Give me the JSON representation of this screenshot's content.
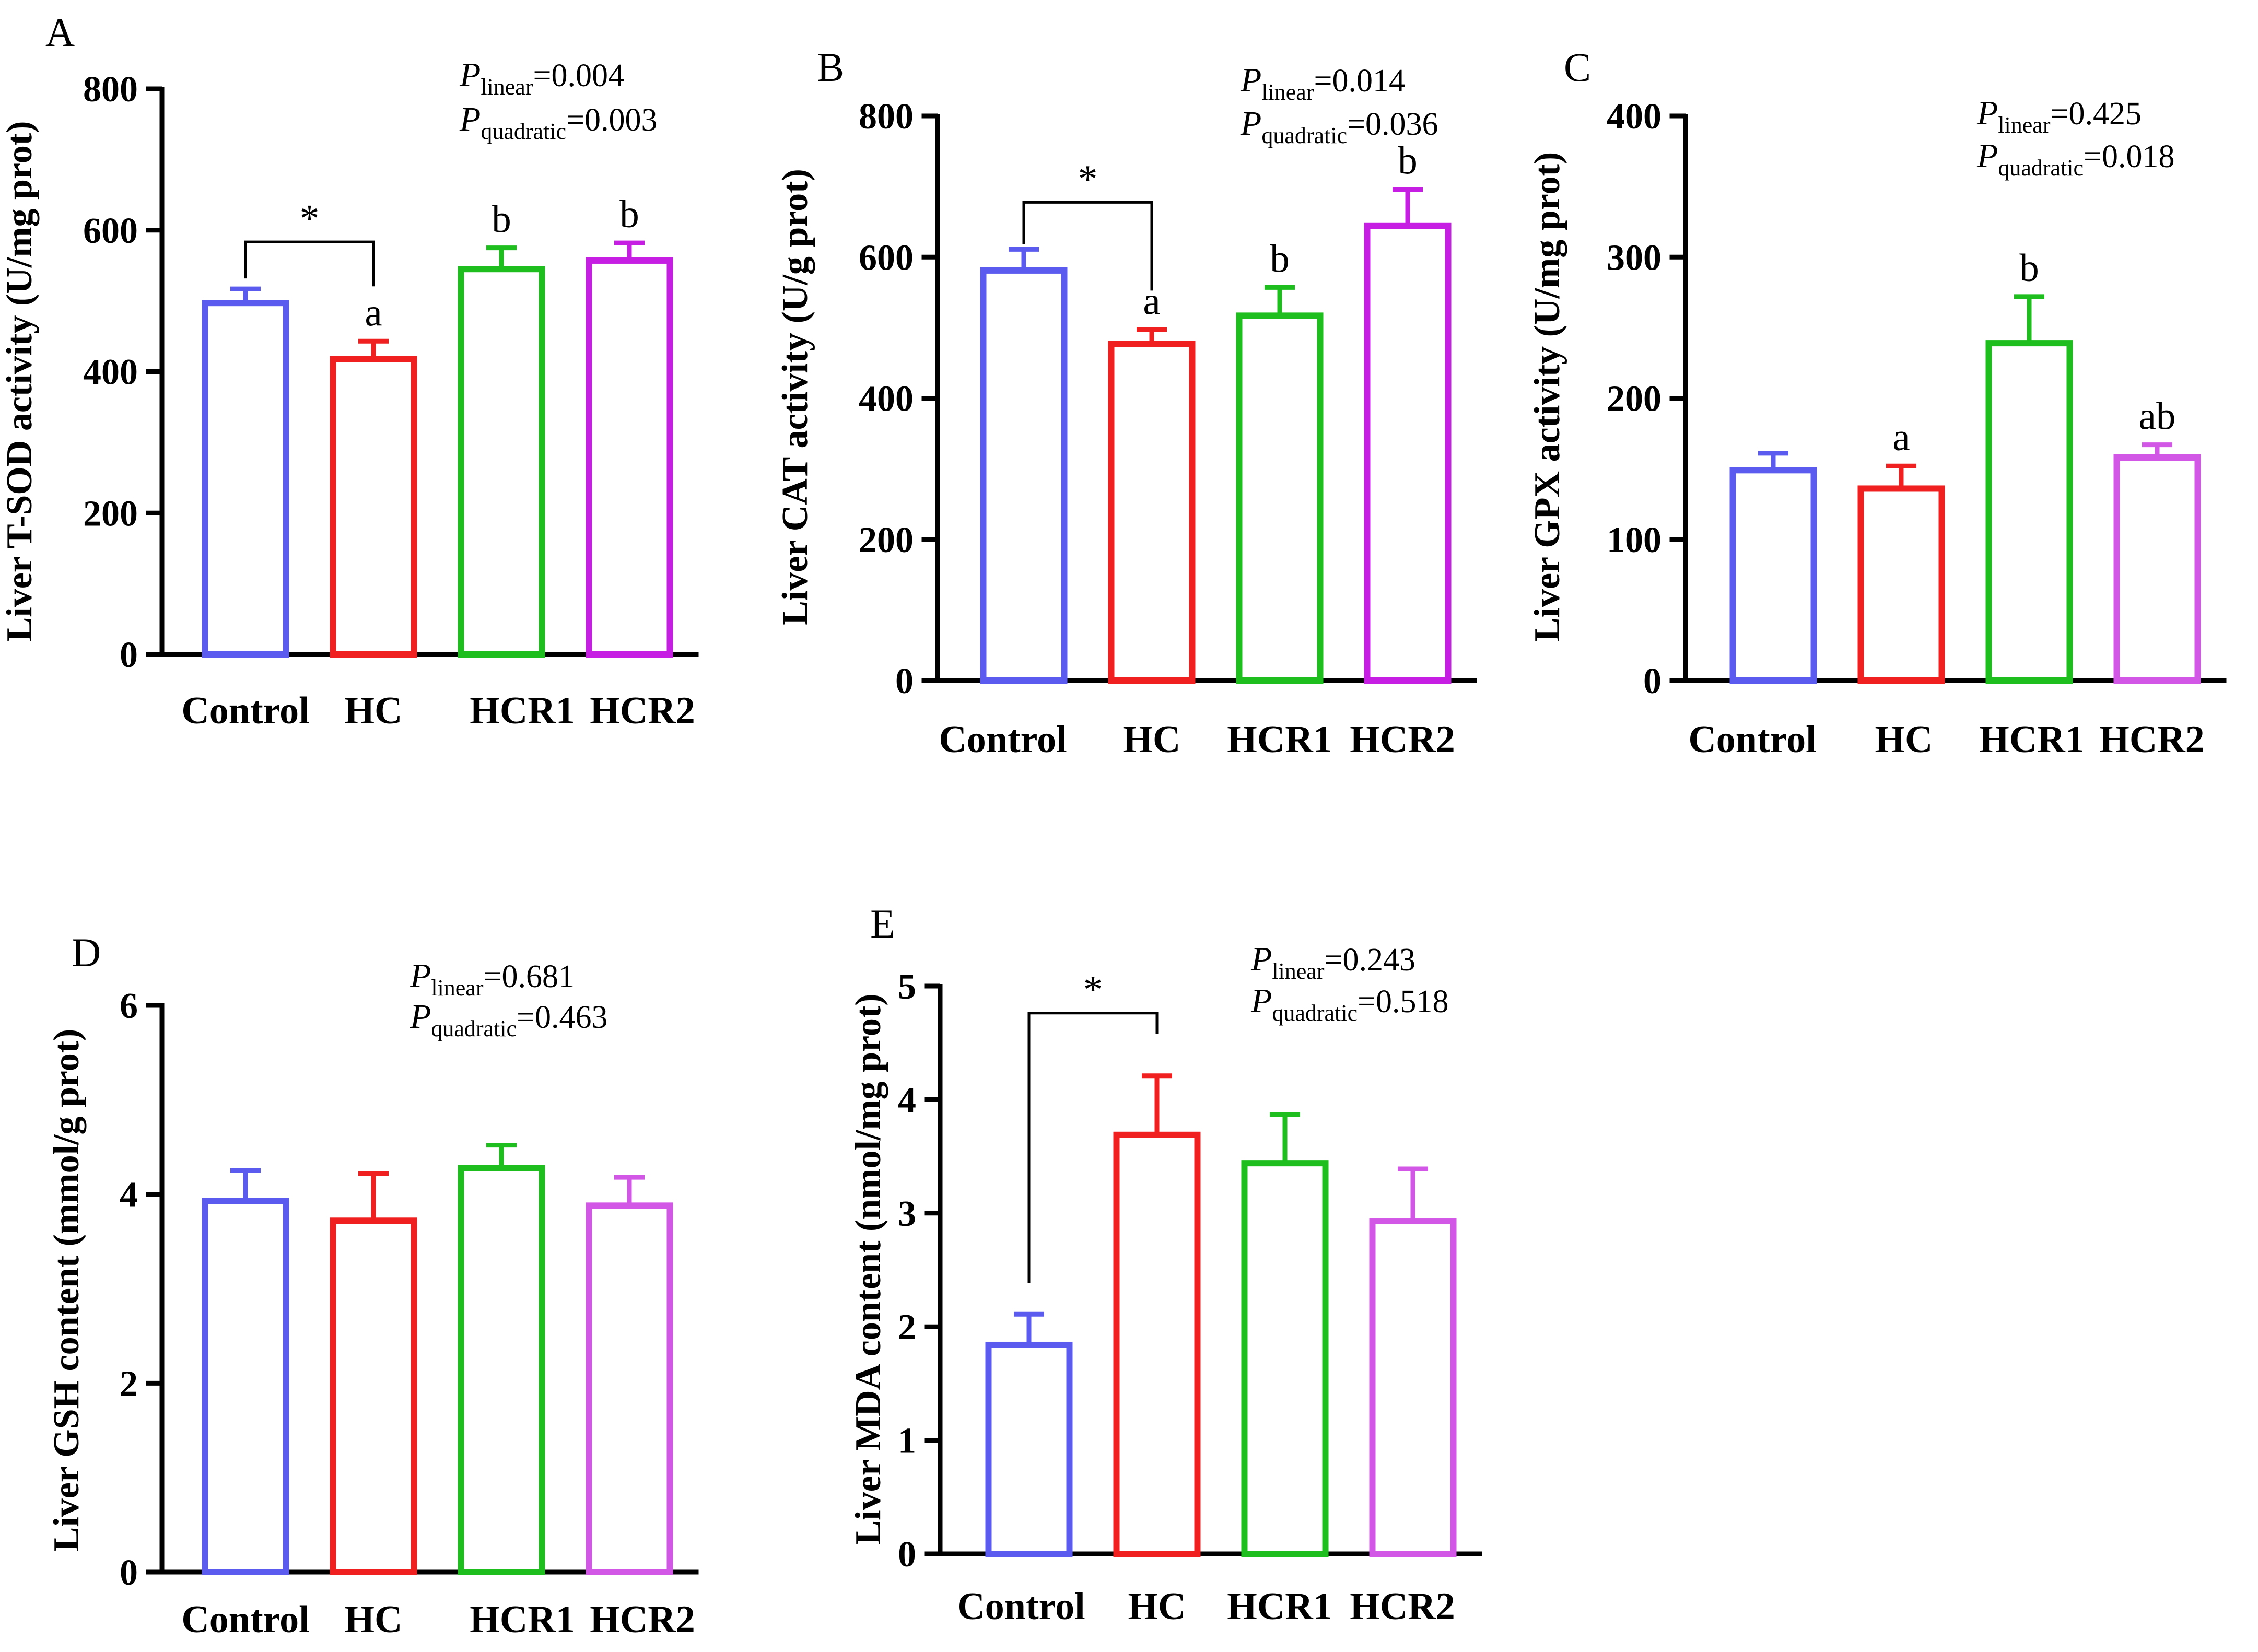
{
  "chart_data": [
    {
      "type": "bar",
      "panel_letter": "A",
      "ylabel": "Liver T-SOD activity (U/mg prot)",
      "ylim": [
        0,
        800
      ],
      "yticks": [
        "0",
        "200",
        "400",
        "600",
        "800"
      ],
      "categories": [
        "Control",
        "HC",
        "HCR1",
        "HCR2"
      ],
      "values": [
        497,
        418,
        545,
        557
      ],
      "errors": [
        20,
        25,
        30,
        25
      ],
      "bar_colors": [
        "#5B5BF0",
        "#F02020",
        "#1DBE1D",
        "#C61FE3"
      ],
      "significance_letters": [
        "",
        "a",
        "b",
        "b"
      ],
      "significance_bracket": {
        "from": 0,
        "to": 1,
        "label": "*"
      },
      "stats": [
        {
          "symbol": "P",
          "subscript": "linear",
          "text": "=0.004"
        },
        {
          "symbol": "P",
          "subscript": "quadratic",
          "text": "=0.003"
        }
      ]
    },
    {
      "type": "bar",
      "panel_letter": "B",
      "ylabel": "Liver CAT activity (U/g prot)",
      "ylim": [
        0,
        800
      ],
      "yticks": [
        "0",
        "200",
        "400",
        "600",
        "800"
      ],
      "categories": [
        "Control",
        "HC",
        "HCR1",
        "HCR2"
      ],
      "values": [
        581,
        477,
        517,
        644
      ],
      "errors": [
        30,
        20,
        40,
        52
      ],
      "bar_colors": [
        "#5B5BF0",
        "#F02020",
        "#1DBE1D",
        "#C61FE3"
      ],
      "significance_letters": [
        "",
        "a",
        "b",
        "b"
      ],
      "significance_bracket": {
        "from": 0,
        "to": 1,
        "label": "*"
      },
      "stats": [
        {
          "symbol": "P",
          "subscript": "linear",
          "text": "=0.014"
        },
        {
          "symbol": "P",
          "subscript": "quadratic",
          "text": "=0.036"
        }
      ]
    },
    {
      "type": "bar",
      "panel_letter": "C",
      "ylabel": "Liver GPX activity (U/mg prot)",
      "ylim": [
        0,
        400
      ],
      "yticks": [
        "0",
        "100",
        "200",
        "300",
        "400"
      ],
      "categories": [
        "Control",
        "HC",
        "HCR1",
        "HCR2"
      ],
      "values": [
        149,
        136,
        239,
        158
      ],
      "errors": [
        12,
        16,
        33,
        9
      ],
      "bar_colors": [
        "#5B5BF0",
        "#F02020",
        "#1DBE1D",
        "#D257E6"
      ],
      "significance_letters": [
        "",
        "a",
        "b",
        "ab"
      ],
      "significance_bracket": null,
      "stats": [
        {
          "symbol": "P",
          "subscript": "linear",
          "text": "=0.425"
        },
        {
          "symbol": "P",
          "subscript": "quadratic",
          "text": "=0.018"
        }
      ]
    },
    {
      "type": "bar",
      "panel_letter": "D",
      "ylabel": "Liver GSH content (mmol/g prot)",
      "ylim": [
        0,
        6
      ],
      "yticks": [
        "0",
        "2",
        "4",
        "6"
      ],
      "categories": [
        "Control",
        "HC",
        "HCR1",
        "HCR2"
      ],
      "values": [
        3.93,
        3.72,
        4.28,
        3.88
      ],
      "errors": [
        0.32,
        0.5,
        0.24,
        0.3
      ],
      "bar_colors": [
        "#5B5BF0",
        "#F02020",
        "#1DBE1D",
        "#D257E6"
      ],
      "significance_letters": [
        "",
        "",
        "",
        ""
      ],
      "significance_bracket": null,
      "stats": [
        {
          "symbol": "P",
          "subscript": "linear",
          "text": "=0.681"
        },
        {
          "symbol": "P",
          "subscript": "quadratic",
          "text": "=0.463"
        }
      ]
    },
    {
      "type": "bar",
      "panel_letter": "E",
      "ylabel": "Liver MDA content (nmol/mg prot)",
      "ylim": [
        0,
        5
      ],
      "yticks": [
        "0",
        "1",
        "2",
        "3",
        "4",
        "5"
      ],
      "categories": [
        "Control",
        "HC",
        "HCR1",
        "HCR2"
      ],
      "values": [
        1.84,
        3.69,
        3.44,
        2.93
      ],
      "errors": [
        0.27,
        0.52,
        0.43,
        0.46
      ],
      "bar_colors": [
        "#5B5BF0",
        "#F02020",
        "#1DBE1D",
        "#D257E6"
      ],
      "significance_letters": [
        "",
        "",
        "",
        ""
      ],
      "significance_bracket": {
        "from": 0,
        "to": 1,
        "label": "*"
      },
      "stats": [
        {
          "symbol": "P",
          "subscript": "linear",
          "text": "=0.243"
        },
        {
          "symbol": "P",
          "subscript": "quadratic",
          "text": "=0.518"
        }
      ]
    }
  ]
}
